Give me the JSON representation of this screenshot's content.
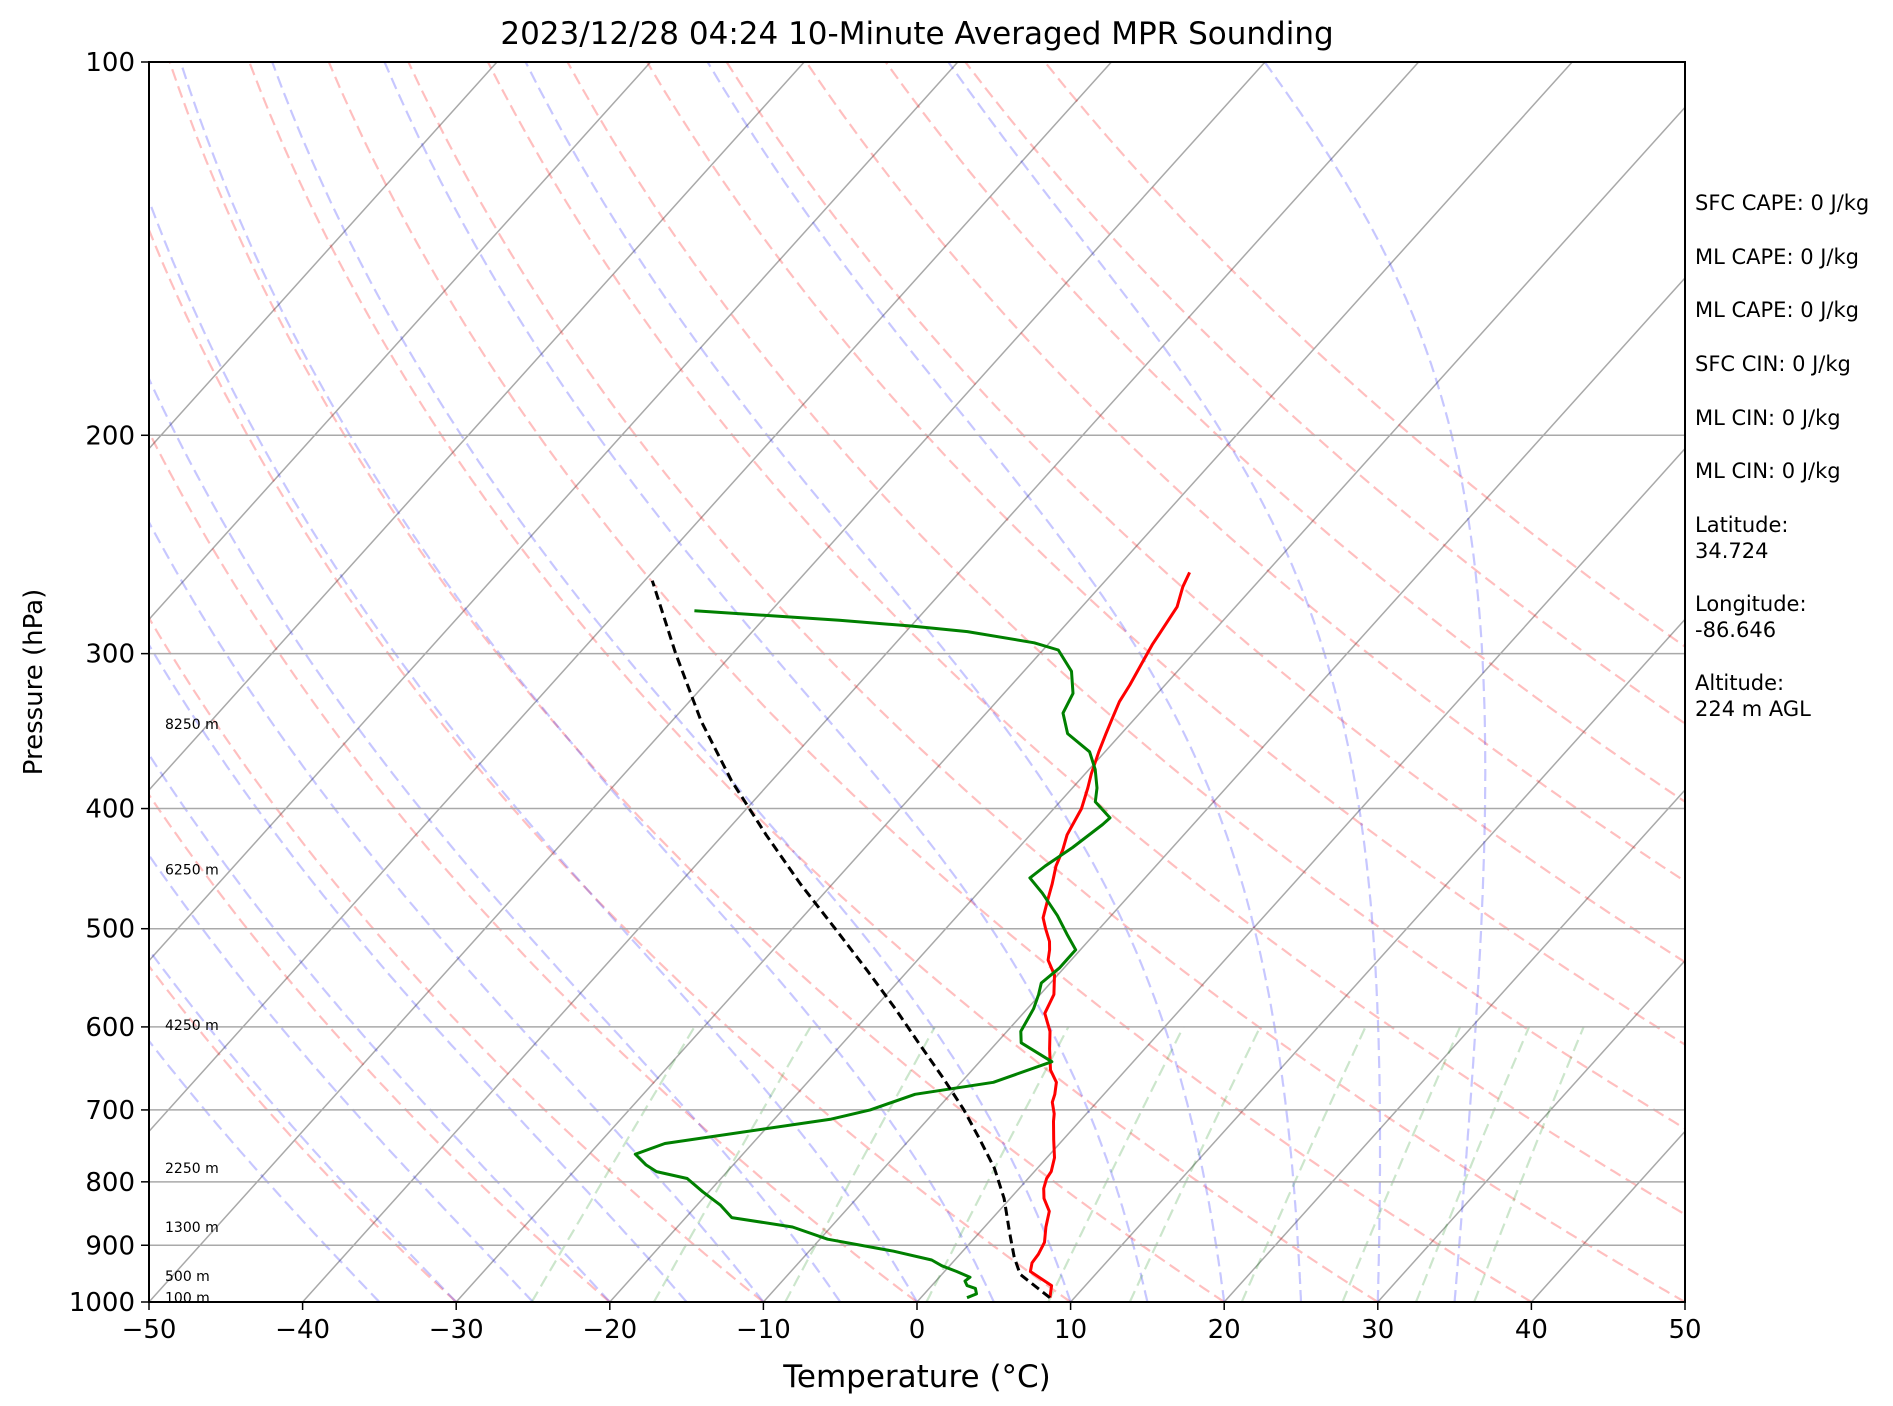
{
  "chart_data": {
    "type": "line",
    "title": "2023/12/28 04:24 10-Minute Averaged MPR Sounding",
    "xlabel": "Temperature (°C)",
    "ylabel": "Pressure (hPa)",
    "xlim": [
      -50,
      50
    ],
    "ylim": [
      1000,
      100
    ],
    "y_scale": "log",
    "grid": true,
    "x_ticks": [
      -50,
      -40,
      -30,
      -20,
      -10,
      0,
      10,
      20,
      30,
      40,
      50
    ],
    "x_tick_labels": [
      "−50",
      "−40",
      "−30",
      "−20",
      "−10",
      "0",
      "10",
      "20",
      "30",
      "40",
      "50"
    ],
    "y_ticks": [
      1000,
      900,
      800,
      700,
      600,
      500,
      400,
      300,
      200,
      100
    ],
    "y_tick_labels": [
      "1000",
      "900",
      "800",
      "700",
      "600",
      "500",
      "400",
      "300",
      "200",
      "100"
    ],
    "height_labels": [
      {
        "text": "100 m",
        "p": 992
      },
      {
        "text": "500 m",
        "p": 953
      },
      {
        "text": "1300 m",
        "p": 870
      },
      {
        "text": "2250 m",
        "p": 780
      },
      {
        "text": "4250 m",
        "p": 598
      },
      {
        "text": "6250 m",
        "p": 448
      },
      {
        "text": "8250 m",
        "p": 342
      }
    ],
    "series": [
      {
        "color": "#ff0000",
        "x_kind": "temperature_celsius",
        "points": [
          [
            8.4,
            992
          ],
          [
            7.8,
            970
          ],
          [
            5.6,
            945
          ],
          [
            5.2,
            930
          ],
          [
            5.1,
            915
          ],
          [
            4.8,
            895
          ],
          [
            4.0,
            870
          ],
          [
            3.3,
            845
          ],
          [
            2.2,
            825
          ],
          [
            1.6,
            810
          ],
          [
            1.2,
            795
          ],
          [
            1.1,
            785
          ],
          [
            0.5,
            765
          ],
          [
            -0.6,
            740
          ],
          [
            -1.7,
            715
          ],
          [
            -2.1,
            705
          ],
          [
            -2.9,
            690
          ],
          [
            -3.2,
            680
          ],
          [
            -3.8,
            665
          ],
          [
            -4.9,
            650
          ],
          [
            -6.2,
            625
          ],
          [
            -7.2,
            605
          ],
          [
            -8.6,
            585
          ],
          [
            -9.1,
            565
          ],
          [
            -10.2,
            545
          ],
          [
            -11.5,
            530
          ],
          [
            -12.0,
            520
          ],
          [
            -12.5,
            512
          ],
          [
            -13.5,
            500
          ],
          [
            -14.3,
            490
          ],
          [
            -15.0,
            475
          ],
          [
            -15.7,
            460
          ],
          [
            -16.5,
            445
          ],
          [
            -17.0,
            432
          ],
          [
            -17.6,
            420
          ],
          [
            -17.9,
            410
          ],
          [
            -18.2,
            400
          ],
          [
            -19.0,
            385
          ],
          [
            -19.6,
            375
          ],
          [
            -20.4,
            360
          ],
          [
            -21.0,
            348
          ],
          [
            -21.5,
            338
          ],
          [
            -22.0,
            328
          ],
          [
            -22.3,
            318
          ],
          [
            -22.8,
            305
          ],
          [
            -23.2,
            295
          ],
          [
            -23.4,
            288
          ],
          [
            -23.8,
            275
          ],
          [
            -24.6,
            265
          ],
          [
            -25.0,
            258
          ]
        ]
      },
      {
        "color": "#008000",
        "x_kind": "temperature_celsius",
        "points": [
          [
            3.0,
            992
          ],
          [
            3.4,
            985
          ],
          [
            3.0,
            975
          ],
          [
            2.3,
            970
          ],
          [
            1.9,
            962
          ],
          [
            2.0,
            955
          ],
          [
            0.8,
            945
          ],
          [
            -0.5,
            935
          ],
          [
            -1.5,
            925
          ],
          [
            -4.5,
            910
          ],
          [
            -9.5,
            890
          ],
          [
            -12.5,
            870
          ],
          [
            -17.0,
            855
          ],
          [
            -18.5,
            835
          ],
          [
            -20.4,
            815
          ],
          [
            -22.2,
            795
          ],
          [
            -24.6,
            785
          ],
          [
            -25.7,
            775
          ],
          [
            -27.0,
            760
          ],
          [
            -25.7,
            745
          ],
          [
            -16.3,
            712
          ],
          [
            -14.3,
            700
          ],
          [
            -12.3,
            680
          ],
          [
            -7.9,
            665
          ],
          [
            -5.3,
            640
          ],
          [
            -8.4,
            618
          ],
          [
            -9.1,
            605
          ],
          [
            -9.6,
            580
          ],
          [
            -10.1,
            565
          ],
          [
            -10.6,
            553
          ],
          [
            -10.3,
            538
          ],
          [
            -10.3,
            520
          ],
          [
            -11.8,
            505
          ],
          [
            -13.5,
            488
          ],
          [
            -15.8,
            468
          ],
          [
            -17.5,
            455
          ],
          [
            -17.2,
            445
          ],
          [
            -16.5,
            430
          ],
          [
            -15.9,
            412
          ],
          [
            -15.8,
            407
          ],
          [
            -17.7,
            395
          ],
          [
            -18.4,
            385
          ],
          [
            -19.6,
            372
          ],
          [
            -21.0,
            360
          ],
          [
            -23.5,
            348
          ],
          [
            -25.0,
            335
          ],
          [
            -25.5,
            323
          ],
          [
            -26.9,
            310
          ],
          [
            -29.0,
            298
          ],
          [
            -31.0,
            294
          ],
          [
            -36.0,
            288
          ],
          [
            -40.0,
            285
          ],
          [
            -45.0,
            282
          ],
          [
            -55.0,
            277
          ]
        ]
      },
      {
        "color": "#000000",
        "x_kind": "temperature_celsius",
        "dashed": true,
        "points": [
          [
            8.4,
            992
          ],
          [
            5.1,
            950
          ],
          [
            3.7,
            920
          ],
          [
            2.0,
            880
          ],
          [
            -0.4,
            825
          ],
          [
            -2.8,
            780
          ],
          [
            -5.4,
            740
          ],
          [
            -8.2,
            700
          ],
          [
            -11.4,
            660
          ],
          [
            -14.9,
            620
          ],
          [
            -18.6,
            580
          ],
          [
            -22.7,
            540
          ],
          [
            -27.2,
            500
          ],
          [
            -32.1,
            460
          ],
          [
            -37.2,
            420
          ],
          [
            -42.6,
            380
          ],
          [
            -48.1,
            340
          ],
          [
            -53.7,
            300
          ],
          [
            -59.5,
            262
          ]
        ]
      }
    ],
    "background_lines": {
      "isotherms_c": [
        -100,
        -90,
        -80,
        -70,
        -60,
        -50,
        -40,
        -30,
        -20,
        -10,
        0,
        10,
        20,
        30,
        40,
        50
      ],
      "dry_adiabats_c": [
        -30,
        -20,
        -10,
        0,
        10,
        20,
        30,
        40,
        50,
        60,
        70,
        80,
        90,
        100,
        110,
        120,
        130
      ],
      "moist_adiabats_c": [
        -35,
        -30,
        -25,
        -20,
        -15,
        -10,
        -5,
        0,
        5,
        10,
        15,
        20,
        25,
        30,
        35
      ],
      "mixing_ratios_gkg": [
        0.5,
        1,
        2,
        4,
        7,
        10,
        16,
        24,
        32,
        40
      ]
    }
  },
  "stats": [
    {
      "label": "SFC CAPE: 0 J/kg"
    },
    {
      "label": "ML CAPE: 0 J/kg"
    },
    {
      "label": "ML CAPE: 0 J/kg"
    },
    {
      "label": "SFC CIN: 0 J/kg"
    },
    {
      "label": "ML CIN: 0 J/kg"
    },
    {
      "label": "ML CIN: 0 J/kg"
    },
    {
      "label": "Latitude:\n34.724"
    },
    {
      "label": "Longitude:\n-86.646"
    },
    {
      "label": "Altitude:\n224 m AGL"
    }
  ]
}
